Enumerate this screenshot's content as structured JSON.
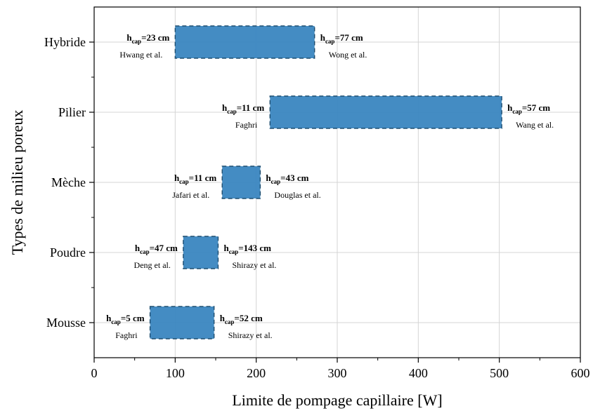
{
  "chart_data": {
    "type": "bar",
    "orientation": "horizontal-range",
    "xlabel": "Limite de pompage capillaire [W]",
    "ylabel": "Types de milieu poreux",
    "xlim": [
      0,
      600
    ],
    "xticks": [
      0,
      100,
      200,
      300,
      400,
      500,
      600
    ],
    "grid": true,
    "bar_color": "#3a86c0",
    "categories": [
      "Hybride",
      "Pilier",
      "Mèche",
      "Poudre",
      "Mousse"
    ],
    "ranges": [
      {
        "category": "Hybride",
        "low": 100,
        "high": 272,
        "left": {
          "sub": "cap",
          "value": "=23 cm",
          "ref": "Hwang et al."
        },
        "right": {
          "sub": "cap",
          "value": "=77 cm",
          "ref": "Wong et al."
        }
      },
      {
        "category": "Pilier",
        "low": 217,
        "high": 503,
        "left": {
          "sub": "cap",
          "value": "=11 cm",
          "ref": "Faghri"
        },
        "right": {
          "sub": "cap",
          "value": "=57 cm",
          "ref": "Wang et al."
        }
      },
      {
        "category": "Mèche",
        "low": 158,
        "high": 205,
        "left": {
          "sub": "cap",
          "value": "=11 cm",
          "ref": "Jafari et al."
        },
        "right": {
          "sub": "cap",
          "value": "=43 cm",
          "ref": "Douglas et al."
        }
      },
      {
        "category": "Poudre",
        "low": 110,
        "high": 153,
        "left": {
          "sub": "cap",
          "value": "=47 cm",
          "ref": "Deng et al."
        },
        "right": {
          "sub": "cap",
          "value": "=143 cm",
          "ref": "Shirazy et al."
        }
      },
      {
        "category": "Mousse",
        "low": 69,
        "high": 148,
        "left": {
          "sub": "cap",
          "value": "=5 cm",
          "ref": "Faghri"
        },
        "right": {
          "sub": "cap",
          "value": "=52 cm",
          "ref": "Shirazy et al."
        }
      }
    ],
    "annotation_symbol": "h"
  }
}
